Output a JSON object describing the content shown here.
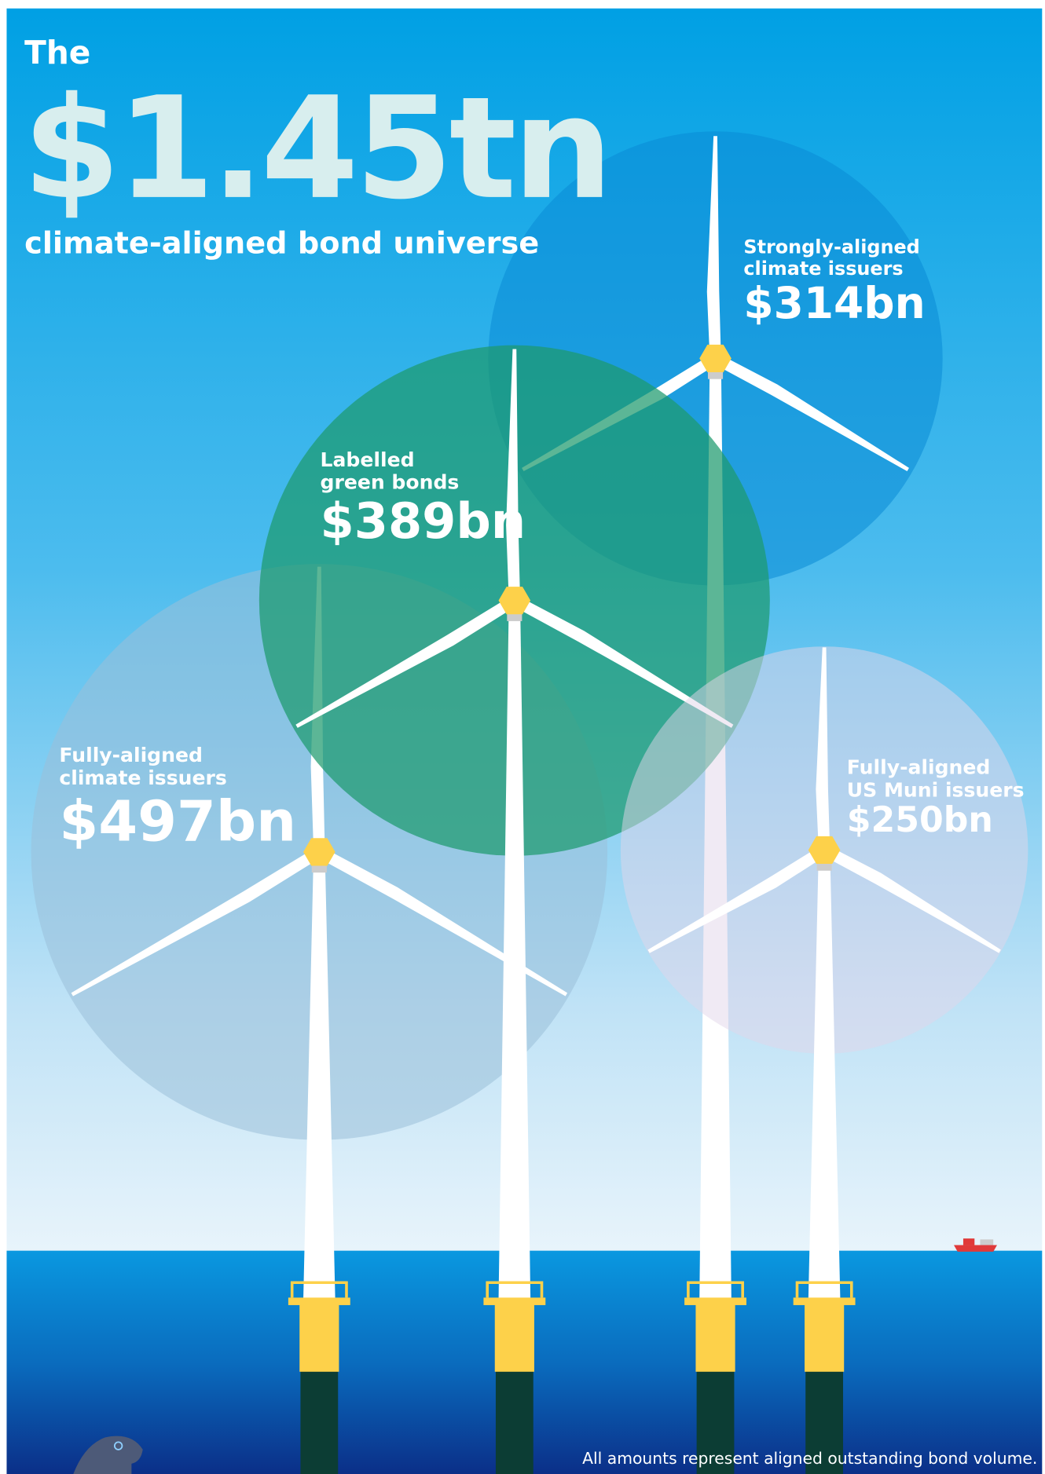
{
  "headline": {
    "lead": "The",
    "amount": "$1.45tn",
    "subtitle": "climate-aligned bond universe"
  },
  "segments": [
    {
      "label": [
        "Strongly-aligned",
        "climate issuers"
      ],
      "amount": "$314bn"
    },
    {
      "label": [
        "Labelled",
        "green bonds"
      ],
      "amount": "$389bn"
    },
    {
      "label": [
        "Fully-aligned",
        "climate issuers"
      ],
      "amount": "$497bn"
    },
    {
      "label": [
        "Fully-aligned",
        "US Muni issuers"
      ],
      "amount": "$250bn"
    }
  ],
  "footnote": "All amounts represent aligned outstanding bond volume."
}
